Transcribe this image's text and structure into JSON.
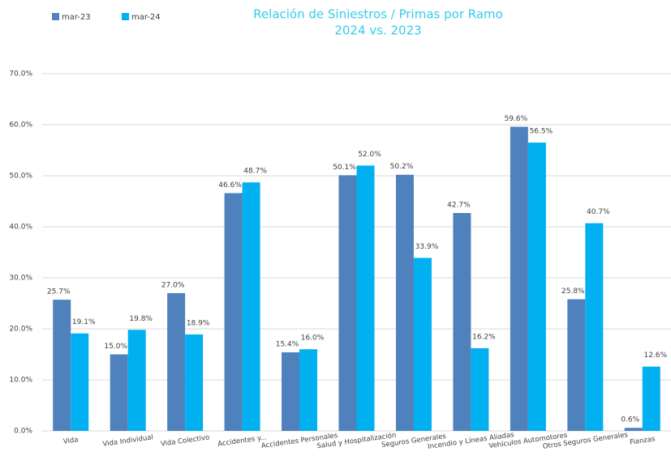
{
  "chart_data": {
    "type": "bar",
    "title": "Relación de Siniestros / Primas por Ramo",
    "subtitle": "2024 vs. 2023",
    "categories": [
      "Vida",
      "Vida Individual",
      "Vida Colectivo",
      "Accidentes y...",
      "Accidentes Personales",
      "Salud y Hospitalización",
      "Seguros Generales",
      "Incendio y Líneas Aliadas",
      "Vehículos Automotores",
      "Otros Seguros Generales",
      "Fianzas"
    ],
    "series": [
      {
        "name": "mar-23",
        "color": "#4f81bd",
        "values": [
          25.7,
          15.0,
          27.0,
          46.6,
          15.4,
          50.1,
          50.2,
          42.7,
          59.6,
          25.8,
          0.6
        ],
        "value_labels": [
          "25.7%",
          "15.0%",
          "27.0%",
          "46.6%",
          "15.4%",
          "50.1%",
          "50.2%",
          "42.7%",
          "59.6%",
          "25.8%",
          "0.6%"
        ]
      },
      {
        "name": "mar-24",
        "color": "#00b0f0",
        "values": [
          19.1,
          19.8,
          18.9,
          48.7,
          16.0,
          52.0,
          33.9,
          16.2,
          56.5,
          40.7,
          12.6
        ],
        "value_labels": [
          "19.1%",
          "19.8%",
          "18.9%",
          "48.7%",
          "16.0%",
          "52.0%",
          "33.9%",
          "16.2%",
          "56.5%",
          "40.7%",
          "12.6%"
        ]
      }
    ],
    "ylim": [
      0,
      70
    ],
    "yticks": [
      {
        "value": 0,
        "label": "0.0%"
      },
      {
        "value": 10,
        "label": "10.0%"
      },
      {
        "value": 20,
        "label": "20.0%"
      },
      {
        "value": 30,
        "label": "30.0%"
      },
      {
        "value": 40,
        "label": "40.0%"
      },
      {
        "value": 50,
        "label": "50.0%"
      },
      {
        "value": 60,
        "label": "60.0%"
      },
      {
        "value": 70,
        "label": "70.0%"
      }
    ],
    "grid": true,
    "legend": "top-left"
  }
}
